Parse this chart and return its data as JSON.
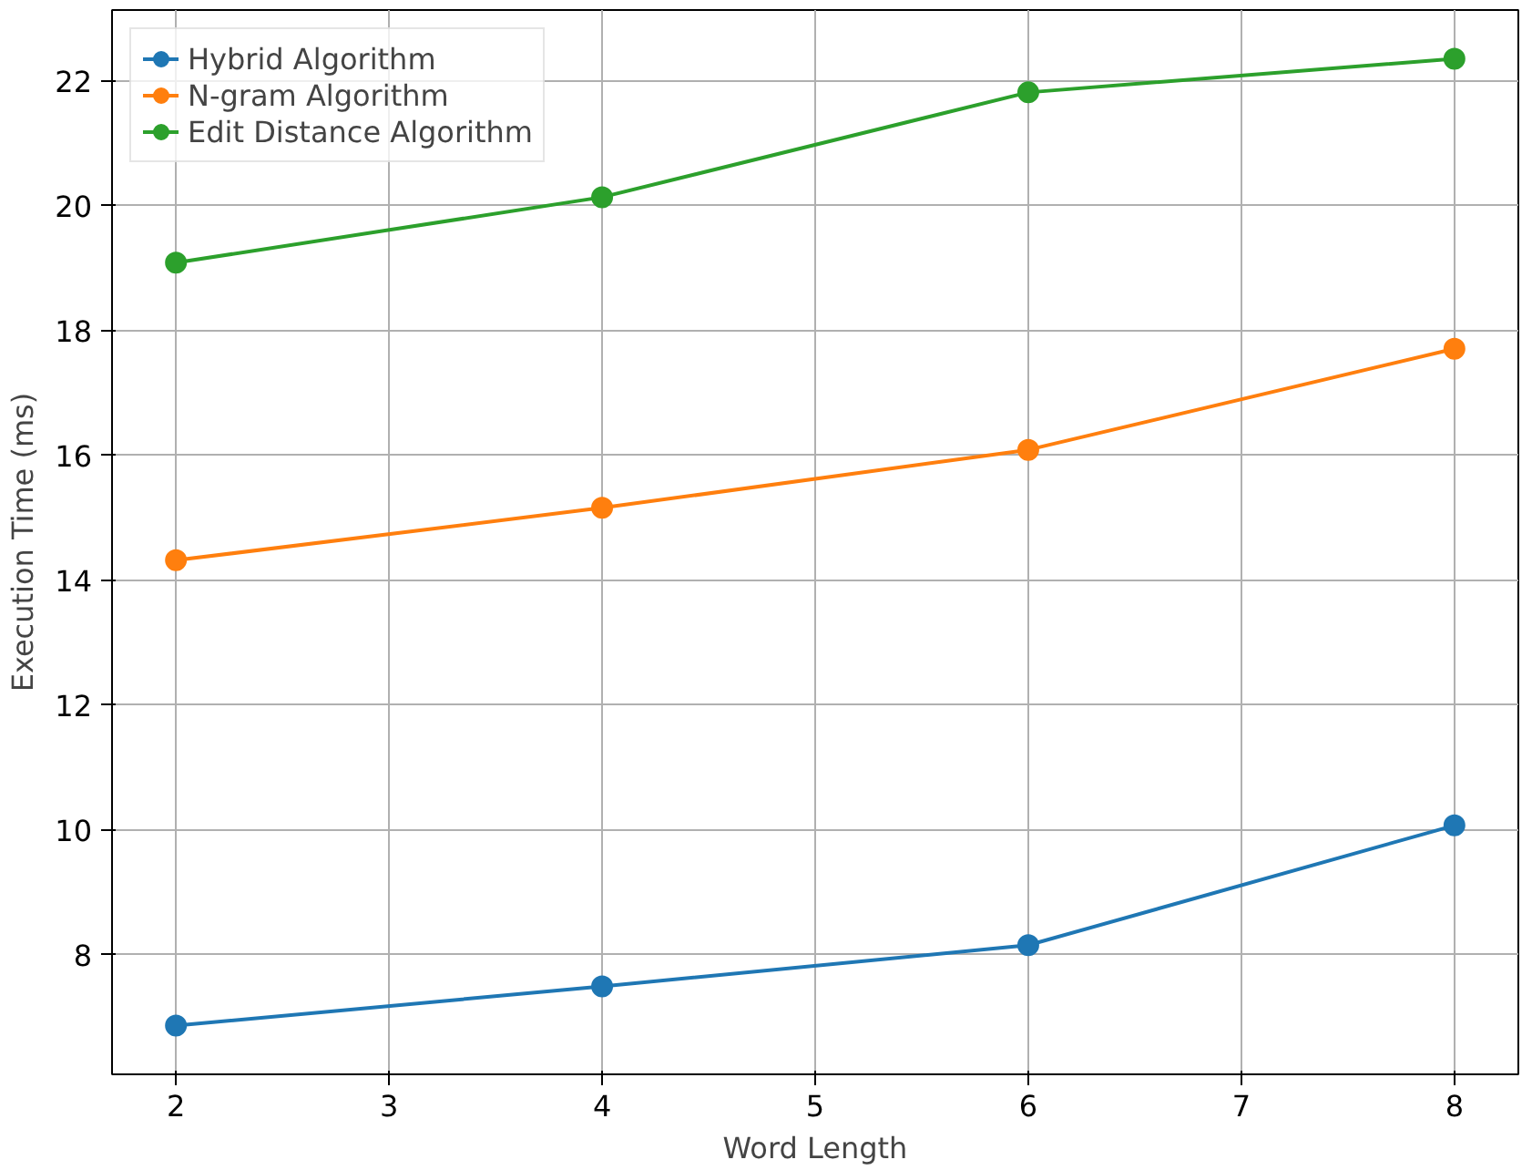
{
  "chart_data": {
    "type": "line",
    "xlabel": "Word Length",
    "ylabel": "Execution Time (ms)",
    "x": [
      2,
      4,
      6,
      8
    ],
    "series": [
      {
        "name": "Hybrid Algorithm",
        "color": "#1f77b4",
        "values": [
          6.86,
          7.49,
          8.15,
          10.07
        ]
      },
      {
        "name": "N-gram Algorithm",
        "color": "#ff7f0e",
        "values": [
          14.32,
          15.16,
          16.09,
          17.71
        ]
      },
      {
        "name": "Edit Distance Algorithm",
        "color": "#2ca02c",
        "values": [
          19.09,
          20.14,
          21.82,
          22.36
        ]
      }
    ],
    "xlim": [
      1.7,
      8.3
    ],
    "xticks": [
      2,
      3,
      4,
      5,
      6,
      7,
      8
    ],
    "ylim": [
      6.08,
      23.14
    ],
    "yticks": [
      8,
      10,
      12,
      14,
      16,
      18,
      20,
      22
    ],
    "grid": true,
    "legend": "top left",
    "marker": "circle",
    "line_style": "solid"
  }
}
